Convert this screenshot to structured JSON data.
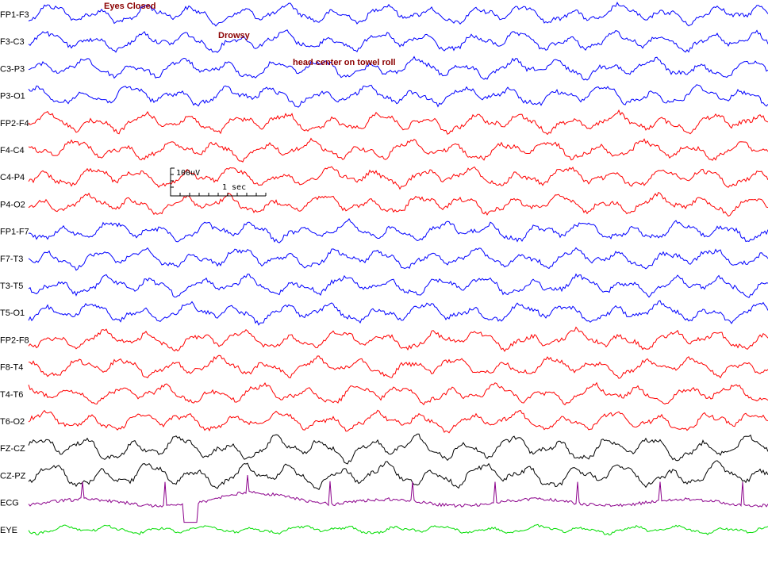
{
  "chart_data": {
    "type": "line",
    "title": "",
    "xlabel": "",
    "ylabel": "",
    "grid": false,
    "legend": "none",
    "channels": [
      {
        "label": "FP1-F3",
        "color": "#0000ff"
      },
      {
        "label": "F3-C3",
        "color": "#0000ff"
      },
      {
        "label": "C3-P3",
        "color": "#0000ff"
      },
      {
        "label": "P3-O1",
        "color": "#0000ff"
      },
      {
        "label": "FP2-F4",
        "color": "#ff0000"
      },
      {
        "label": "F4-C4",
        "color": "#ff0000"
      },
      {
        "label": "C4-P4",
        "color": "#ff0000"
      },
      {
        "label": "P4-O2",
        "color": "#ff0000"
      },
      {
        "label": "FP1-F7",
        "color": "#0000ff"
      },
      {
        "label": "F7-T3",
        "color": "#0000ff"
      },
      {
        "label": "T3-T5",
        "color": "#0000ff"
      },
      {
        "label": "T5-O1",
        "color": "#0000ff"
      },
      {
        "label": "FP2-F8",
        "color": "#ff0000"
      },
      {
        "label": "F8-T4",
        "color": "#ff0000"
      },
      {
        "label": "T4-T6",
        "color": "#ff0000"
      },
      {
        "label": "T6-O2",
        "color": "#ff0000"
      },
      {
        "label": "FZ-CZ",
        "color": "#000000"
      },
      {
        "label": "CZ-PZ",
        "color": "#000000"
      },
      {
        "label": "ECG",
        "color": "#8b008b"
      },
      {
        "label": "EYE",
        "color": "#00dd00"
      }
    ],
    "annotations": [
      {
        "text": "Eyes Closed"
      },
      {
        "text": "Drowsy"
      },
      {
        "text": "head center on towel roll"
      }
    ],
    "calibration": {
      "amplitude_label": "100uV",
      "time_label": "1 sec"
    }
  }
}
